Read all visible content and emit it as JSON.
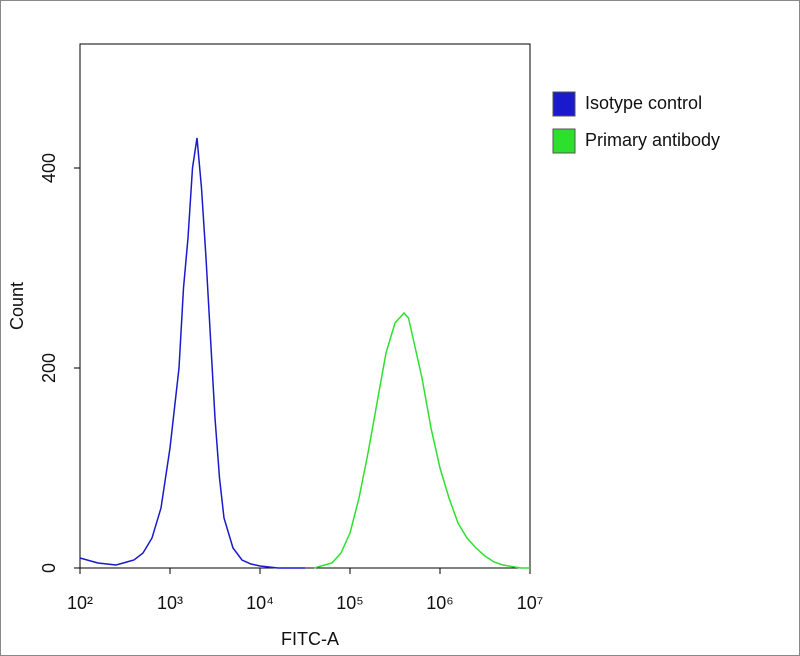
{
  "chart_data": {
    "type": "line",
    "xlabel": "FITC-A",
    "ylabel": "Count",
    "xscale": "log",
    "xlim": [
      100,
      10000000
    ],
    "ylim": [
      0,
      524
    ],
    "xticks": [
      {
        "value": 100,
        "label": "10²"
      },
      {
        "value": 1000,
        "label": "10³"
      },
      {
        "value": 10000,
        "label": "10⁴"
      },
      {
        "value": 100000,
        "label": "10⁵"
      },
      {
        "value": 1000000,
        "label": "10⁶"
      },
      {
        "value": 10000000,
        "label": "10⁷"
      }
    ],
    "yticks": [
      0,
      200,
      400
    ],
    "legend": "right",
    "series": [
      {
        "name": "Isotype control",
        "color": "#1a1acc",
        "x": [
          100,
          158,
          251,
          398,
          501,
          631,
          794,
          1000,
          1259,
          1413,
          1585,
          1778,
          1995,
          2239,
          2512,
          2818,
          3162,
          3548,
          3981,
          5012,
          6310,
          7943,
          10000,
          15849,
          31623
        ],
        "values": [
          10,
          5,
          3,
          8,
          15,
          30,
          60,
          120,
          200,
          280,
          330,
          400,
          430,
          380,
          310,
          230,
          150,
          90,
          50,
          20,
          8,
          4,
          2,
          0,
          0
        ]
      },
      {
        "name": "Primary antibody",
        "color": "#2ee02e",
        "x": [
          39811,
          63096,
          79433,
          100000,
          125893,
          158489,
          199526,
          251189,
          316228,
          398107,
          446684,
          501187,
          630957,
          794328,
          1000000,
          1258925,
          1584893,
          1995262,
          2511886,
          3162278,
          3981072,
          5011872,
          7943282,
          10000000
        ],
        "values": [
          0,
          5,
          15,
          35,
          70,
          115,
          165,
          215,
          245,
          255,
          250,
          230,
          190,
          140,
          100,
          70,
          45,
          30,
          20,
          12,
          6,
          3,
          0,
          0
        ]
      }
    ]
  }
}
